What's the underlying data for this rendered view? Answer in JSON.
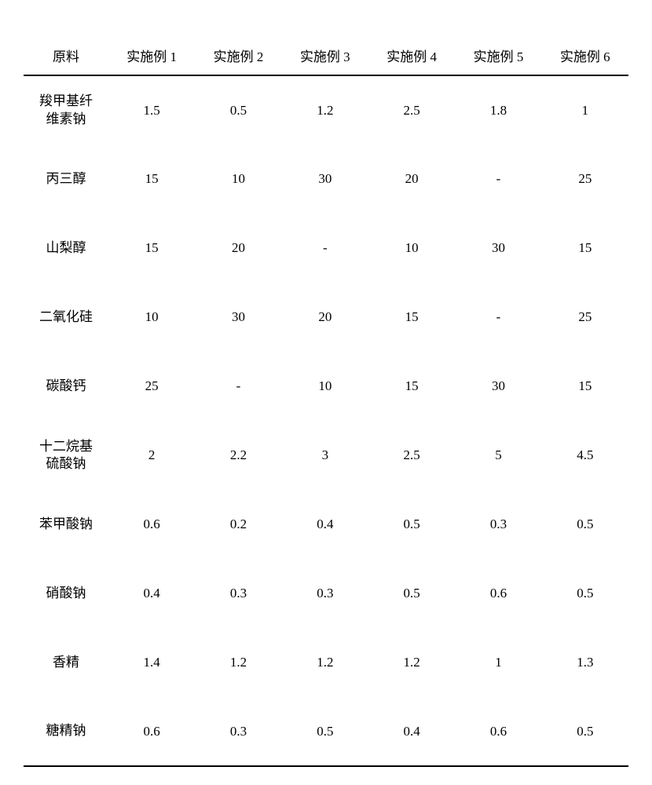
{
  "table": {
    "header_label": "原料",
    "columns": [
      "实施例 1",
      "实施例 2",
      "实施例 3",
      "实施例 4",
      "实施例 5",
      "实施例 6"
    ],
    "rows": [
      {
        "name": "羧甲基纤\n维素钠",
        "values": [
          "1.5",
          "0.5",
          "1.2",
          "2.5",
          "1.8",
          "1"
        ]
      },
      {
        "name": "丙三醇",
        "values": [
          "15",
          "10",
          "30",
          "20",
          "-",
          "25"
        ]
      },
      {
        "name": "山梨醇",
        "values": [
          "15",
          "20",
          "-",
          "10",
          "30",
          "15"
        ]
      },
      {
        "name": "二氧化硅",
        "values": [
          "10",
          "30",
          "20",
          "15",
          "-",
          "25"
        ]
      },
      {
        "name": "碳酸钙",
        "values": [
          "25",
          "-",
          "10",
          "15",
          "30",
          "15"
        ]
      },
      {
        "name": "十二烷基\n硫酸钠",
        "values": [
          "2",
          "2.2",
          "3",
          "2.5",
          "5",
          "4.5"
        ]
      },
      {
        "name": "苯甲酸钠",
        "values": [
          "0.6",
          "0.2",
          "0.4",
          "0.5",
          "0.3",
          "0.5"
        ]
      },
      {
        "name": "硝酸钠",
        "values": [
          "0.4",
          "0.3",
          "0.3",
          "0.5",
          "0.6",
          "0.5"
        ]
      },
      {
        "name": "香精",
        "values": [
          "1.4",
          "1.2",
          "1.2",
          "1.2",
          "1",
          "1.3"
        ]
      },
      {
        "name": "糖精钠",
        "values": [
          "0.6",
          "0.3",
          "0.5",
          "0.4",
          "0.6",
          "0.5"
        ]
      }
    ]
  },
  "styling": {
    "background_color": "#ffffff",
    "text_color": "#000000",
    "border_color": "#000000",
    "header_fontsize": 17,
    "cell_fontsize": 17,
    "font_family": "SimSun"
  }
}
